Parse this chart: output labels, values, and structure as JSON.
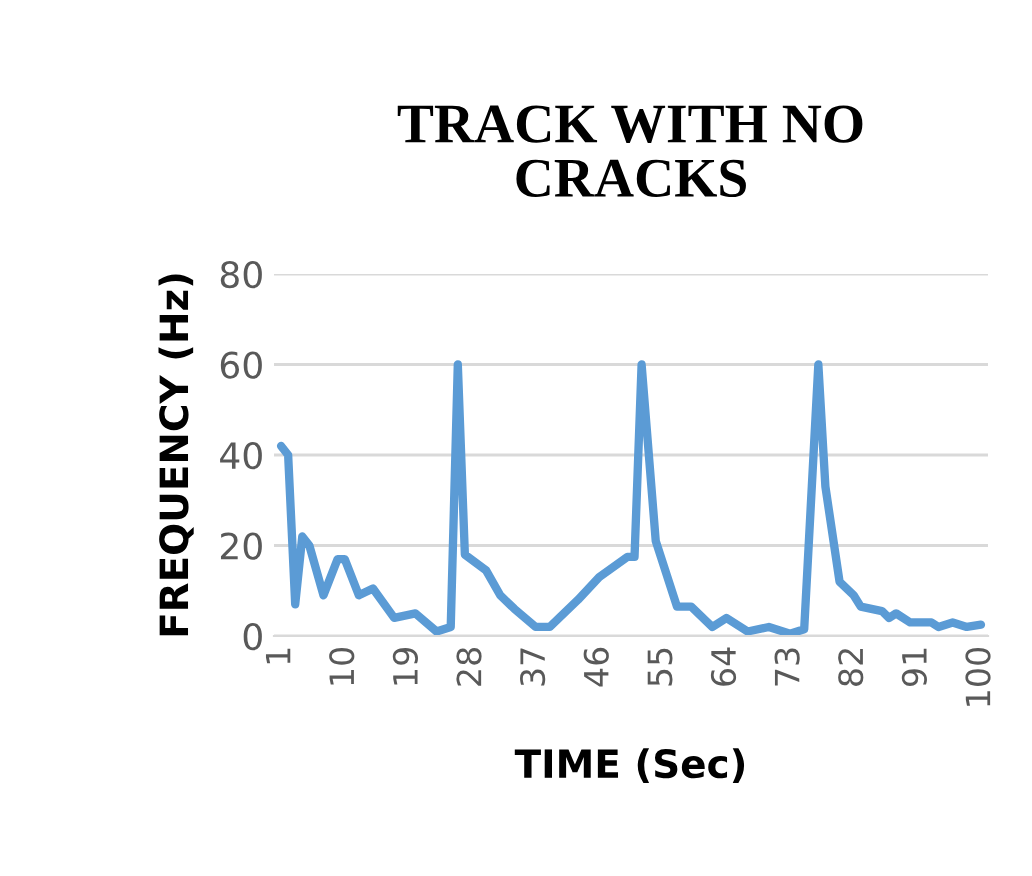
{
  "chart_data": {
    "type": "line",
    "title": "TRACK WITH NO\nCRACKS",
    "xlabel": "TIME (Sec)",
    "ylabel": "FREQUENCY (Hz)",
    "x": [
      1,
      2,
      3,
      4,
      5,
      7,
      9,
      10,
      12,
      14,
      17,
      20,
      23,
      25,
      26,
      27,
      30,
      32,
      34,
      37,
      39,
      43,
      46,
      50,
      51,
      52,
      54,
      57,
      59,
      62,
      64,
      67,
      70,
      73,
      75,
      77,
      78,
      80,
      82,
      83,
      86,
      87,
      88,
      90,
      93,
      94,
      96,
      98,
      100
    ],
    "series": [
      {
        "color": "#5b9bd5",
        "values": [
          42,
          40,
          7,
          22,
          20,
          9,
          17,
          17,
          9,
          10.5,
          4,
          5,
          1,
          2,
          60,
          18,
          14.5,
          9,
          6,
          2,
          2,
          8,
          13,
          17.5,
          17.5,
          60,
          21,
          6.5,
          6.5,
          2,
          4,
          1,
          2,
          0.5,
          1.5,
          60,
          33,
          12,
          9,
          6.5,
          5.5,
          4,
          5,
          3,
          3,
          2,
          3,
          2,
          2.5
        ]
      }
    ],
    "xlim": [
      0,
      101
    ],
    "xticks": [
      1,
      10,
      19,
      28,
      37,
      46,
      55,
      64,
      73,
      82,
      91,
      100
    ],
    "ylim": [
      0,
      80
    ],
    "yticks": [
      0,
      20,
      40,
      60,
      80
    ],
    "grid": "y",
    "legend": false
  }
}
